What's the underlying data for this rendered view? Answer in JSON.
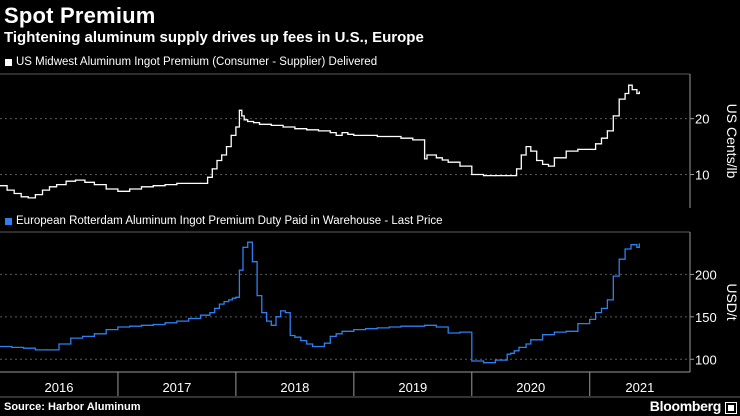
{
  "title": "Spot Premium",
  "subtitle": "Tightening aluminum supply drives up fees in U.S., Europe",
  "source": "Source: Harbor Aluminum",
  "brand": "Bloomberg",
  "colors": {
    "us": "#ffffff",
    "eu": "#2d80f0",
    "grid": "#5a5a5a",
    "background": "#000000"
  },
  "chart_data": [
    {
      "type": "line",
      "title": "US Midwest Aluminum Ingot Premium (Consumer - Supplier) Delivered",
      "ylabel": "US Cents/lb",
      "ylim": [
        4,
        28
      ],
      "yticks": [
        10,
        20
      ],
      "xlim": [
        2016.0,
        2021.85
      ],
      "series": [
        {
          "name": "US Midwest Aluminum Ingot Premium (Consumer - Supplier) Delivered",
          "x": [
            2016.0,
            2016.06,
            2016.12,
            2016.18,
            2016.24,
            2016.3,
            2016.36,
            2016.42,
            2016.48,
            2016.56,
            2016.64,
            2016.72,
            2016.8,
            2016.9,
            2017.0,
            2017.1,
            2017.2,
            2017.3,
            2017.4,
            2017.5,
            2017.6,
            2017.7,
            2017.76,
            2017.8,
            2017.84,
            2017.88,
            2017.92,
            2017.96,
            2018.0,
            2018.03,
            2018.05,
            2018.07,
            2018.1,
            2018.15,
            2018.2,
            2018.3,
            2018.4,
            2018.5,
            2018.6,
            2018.7,
            2018.8,
            2018.85,
            2018.9,
            2018.95,
            2019.0,
            2019.1,
            2019.2,
            2019.3,
            2019.4,
            2019.5,
            2019.6,
            2019.62,
            2019.7,
            2019.75,
            2019.8,
            2019.9,
            2020.0,
            2020.1,
            2020.2,
            2020.3,
            2020.38,
            2020.42,
            2020.46,
            2020.5,
            2020.55,
            2020.6,
            2020.65,
            2020.7,
            2020.8,
            2020.9,
            2021.0,
            2021.05,
            2021.1,
            2021.15,
            2021.2,
            2021.25,
            2021.3,
            2021.33,
            2021.36,
            2021.4,
            2021.42
          ],
          "values": [
            8.0,
            7.2,
            6.6,
            6.0,
            5.8,
            6.4,
            7.2,
            7.8,
            8.2,
            8.8,
            9.0,
            8.6,
            8.2,
            7.4,
            7.0,
            7.4,
            7.8,
            8.0,
            8.2,
            8.4,
            8.4,
            8.4,
            9.5,
            11.0,
            12.5,
            13.5,
            15.0,
            17.0,
            18.5,
            21.5,
            20.5,
            19.8,
            19.5,
            19.3,
            19.0,
            18.8,
            18.5,
            18.2,
            18.0,
            17.8,
            17.5,
            17.0,
            17.5,
            17.2,
            17.0,
            17.0,
            16.8,
            16.8,
            16.5,
            16.2,
            12.8,
            13.5,
            13.0,
            12.6,
            12.2,
            11.5,
            10.0,
            9.8,
            9.8,
            9.8,
            11.0,
            13.5,
            15.0,
            14.2,
            12.5,
            11.8,
            11.5,
            13.0,
            14.2,
            14.5,
            14.5,
            15.5,
            16.5,
            17.8,
            20.5,
            23.5,
            24.5,
            26.0,
            25.2,
            24.5,
            24.8
          ]
        }
      ]
    },
    {
      "type": "line",
      "title": "European Rotterdam Aluminum Ingot Premium Duty Paid in Warehouse - Last Price",
      "ylabel": "USD/t",
      "ylim": [
        85,
        250
      ],
      "yticks": [
        100,
        150,
        200
      ],
      "xlim": [
        2016.0,
        2021.85
      ],
      "xtick_labels": [
        "2016",
        "2017",
        "2018",
        "2019",
        "2020",
        "2021"
      ],
      "series": [
        {
          "name": "European Rotterdam Aluminum Ingot Premium Duty Paid in Warehouse - Last Price",
          "x": [
            2016.0,
            2016.1,
            2016.2,
            2016.3,
            2016.4,
            2016.5,
            2016.6,
            2016.7,
            2016.8,
            2016.9,
            2017.0,
            2017.1,
            2017.2,
            2017.3,
            2017.4,
            2017.5,
            2017.6,
            2017.7,
            2017.78,
            2017.82,
            2017.86,
            2017.9,
            2017.94,
            2017.97,
            2018.0,
            2018.03,
            2018.06,
            2018.1,
            2018.14,
            2018.18,
            2018.22,
            2018.26,
            2018.3,
            2018.34,
            2018.38,
            2018.42,
            2018.46,
            2018.5,
            2018.55,
            2018.6,
            2018.65,
            2018.7,
            2018.75,
            2018.8,
            2018.85,
            2018.9,
            2019.0,
            2019.1,
            2019.2,
            2019.3,
            2019.4,
            2019.5,
            2019.6,
            2019.7,
            2019.8,
            2019.9,
            2020.0,
            2020.1,
            2020.2,
            2020.3,
            2020.33,
            2020.36,
            2020.4,
            2020.46,
            2020.5,
            2020.6,
            2020.7,
            2020.8,
            2020.9,
            2021.0,
            2021.05,
            2021.1,
            2021.15,
            2021.2,
            2021.25,
            2021.3,
            2021.35,
            2021.4,
            2021.42
          ],
          "values": [
            115,
            114,
            113,
            111,
            111,
            118,
            125,
            127,
            130,
            135,
            138,
            139,
            140,
            141,
            143,
            145,
            148,
            152,
            155,
            160,
            165,
            168,
            170,
            172,
            173,
            205,
            232,
            238,
            215,
            175,
            155,
            145,
            140,
            150,
            157,
            155,
            128,
            126,
            122,
            118,
            115,
            115,
            119,
            127,
            130,
            133,
            135,
            136,
            137,
            138,
            139,
            139,
            140,
            138,
            131,
            132,
            98,
            96,
            99,
            106,
            107,
            110,
            114,
            118,
            123,
            129,
            132,
            133,
            142,
            147,
            155,
            160,
            170,
            198,
            218,
            230,
            235,
            232,
            236
          ]
        }
      ]
    }
  ]
}
